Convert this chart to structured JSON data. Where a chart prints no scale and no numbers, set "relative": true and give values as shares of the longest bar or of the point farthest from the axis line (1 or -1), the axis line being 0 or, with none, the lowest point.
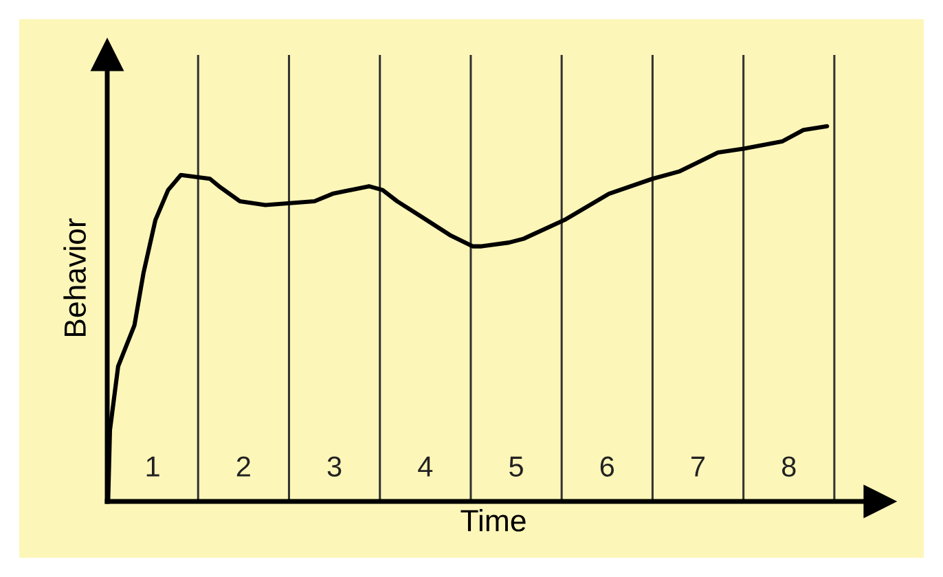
{
  "chart_data": {
    "type": "line",
    "relative": true,
    "xlabel": "Time",
    "ylabel": "Behavior",
    "xlim": [
      0,
      8.5
    ],
    "xticks": [
      {
        "value": 0.5,
        "label": "1"
      },
      {
        "value": 1.5,
        "label": "2"
      },
      {
        "value": 2.5,
        "label": "3"
      },
      {
        "value": 3.5,
        "label": "4"
      },
      {
        "value": 4.5,
        "label": "5"
      },
      {
        "value": 5.5,
        "label": "6"
      },
      {
        "value": 6.5,
        "label": "7"
      },
      {
        "value": 7.5,
        "label": "8"
      }
    ],
    "series": [
      {
        "color": "#000000",
        "x": [
          0.01,
          0.03,
          0.12,
          0.3,
          0.4,
          0.53,
          0.67,
          0.81,
          1.13,
          1.23,
          1.46,
          1.74,
          2.28,
          2.48,
          2.88,
          3.03,
          3.19,
          3.45,
          3.77,
          4.02,
          4.12,
          4.42,
          4.58,
          5.03,
          5.52,
          6.0,
          6.3,
          6.72,
          7.0,
          7.43,
          7.66,
          7.92
        ],
        "values": [
          0,
          0.19,
          0.36,
          0.47,
          0.61,
          0.75,
          0.83,
          0.87,
          0.86,
          0.84,
          0.8,
          0.79,
          0.8,
          0.82,
          0.84,
          0.83,
          0.8,
          0.76,
          0.71,
          0.68,
          0.68,
          0.69,
          0.7,
          0.75,
          0.82,
          0.86,
          0.88,
          0.93,
          0.94,
          0.96,
          0.99,
          1
        ]
      }
    ],
    "ref_lines": [
      {
        "axis": "x",
        "value": 1
      },
      {
        "axis": "x",
        "value": 2
      },
      {
        "axis": "x",
        "value": 3
      },
      {
        "axis": "x",
        "value": 4
      },
      {
        "axis": "x",
        "value": 5
      },
      {
        "axis": "x",
        "value": 6
      },
      {
        "axis": "x",
        "value": 7
      },
      {
        "axis": "x",
        "value": 8
      }
    ]
  }
}
